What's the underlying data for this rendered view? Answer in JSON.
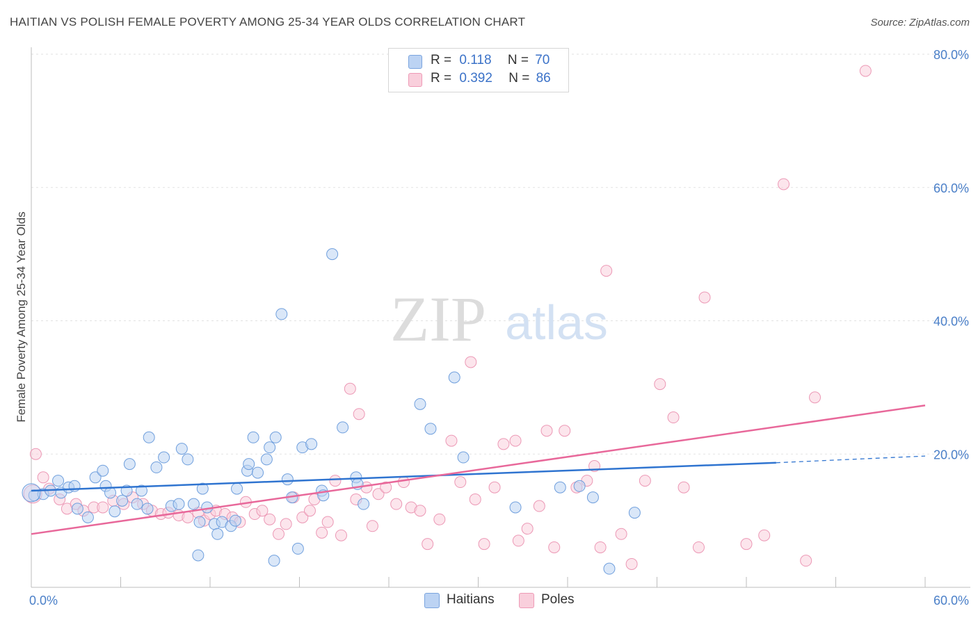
{
  "title": "HAITIAN VS POLISH FEMALE POVERTY AMONG 25-34 YEAR OLDS CORRELATION CHART",
  "source": "Source: ZipAtlas.com",
  "watermark": {
    "zip": "ZIP",
    "atlas": "atlas"
  },
  "legend": {
    "rows": [
      {
        "r_label": "R =",
        "r_value": "0.118",
        "n_label": "N =",
        "n_value": "70",
        "color": "#a8c6ef"
      },
      {
        "r_label": "R =",
        "r_value": "0.392",
        "n_label": "N =",
        "n_value": "86",
        "color": "#f7b8cc"
      }
    ]
  },
  "bottom_legend": {
    "haitians": "Haitians",
    "poles": "Poles"
  },
  "chart_data": {
    "type": "scatter",
    "title": "HAITIAN VS POLISH FEMALE POVERTY AMONG 25-34 YEAR OLDS CORRELATION CHART",
    "xlabel": "",
    "ylabel": "Female Poverty Among 25-34 Year Olds",
    "xlim": [
      0,
      60
    ],
    "ylim": [
      0,
      80
    ],
    "x_tick_labels": [
      "0.0%",
      "60.0%"
    ],
    "y_tick_labels": [
      "20.0%",
      "40.0%",
      "60.0%",
      "80.0%"
    ],
    "y_ticks": [
      20,
      40,
      60,
      80
    ],
    "grid": true,
    "legend_position": "top-center",
    "colors": {
      "haitians": "#6fa1e4",
      "poles": "#f19bb8",
      "haitians_line": "#2f74d0",
      "poles_line": "#e8689a"
    },
    "series": [
      {
        "name": "Haitians",
        "r": 0.118,
        "n": 70,
        "trend": {
          "x0": 0,
          "y0": 14.5,
          "x1": 50,
          "y1": 18.7,
          "dashed_to_x": 60,
          "dashed_to_y": 19.7
        },
        "points": [
          [
            0.2,
            13.8
          ],
          [
            0.8,
            14.0
          ],
          [
            1.3,
            14.5
          ],
          [
            1.8,
            16.0
          ],
          [
            2.0,
            14.2
          ],
          [
            2.5,
            15.0
          ],
          [
            2.9,
            15.2
          ],
          [
            3.1,
            11.8
          ],
          [
            3.8,
            10.5
          ],
          [
            4.3,
            16.5
          ],
          [
            4.8,
            17.5
          ],
          [
            5.0,
            15.2
          ],
          [
            5.3,
            14.2
          ],
          [
            5.6,
            11.4
          ],
          [
            6.1,
            13.0
          ],
          [
            6.4,
            14.5
          ],
          [
            6.6,
            18.5
          ],
          [
            7.1,
            12.5
          ],
          [
            7.4,
            14.5
          ],
          [
            7.8,
            11.8
          ],
          [
            7.9,
            22.5
          ],
          [
            8.4,
            18.0
          ],
          [
            8.9,
            19.5
          ],
          [
            9.4,
            12.2
          ],
          [
            9.9,
            12.5
          ],
          [
            10.1,
            20.8
          ],
          [
            10.5,
            19.2
          ],
          [
            10.9,
            12.5
          ],
          [
            11.2,
            4.8
          ],
          [
            11.5,
            14.8
          ],
          [
            11.8,
            12.0
          ],
          [
            11.3,
            9.8
          ],
          [
            12.3,
            9.5
          ],
          [
            12.5,
            8.0
          ],
          [
            12.8,
            9.8
          ],
          [
            13.4,
            9.2
          ],
          [
            13.7,
            10.0
          ],
          [
            13.8,
            14.8
          ],
          [
            14.5,
            17.5
          ],
          [
            14.6,
            18.5
          ],
          [
            14.9,
            22.5
          ],
          [
            15.2,
            17.2
          ],
          [
            15.8,
            19.2
          ],
          [
            16.0,
            21.0
          ],
          [
            16.4,
            22.5
          ],
          [
            16.3,
            4.0
          ],
          [
            16.8,
            41.0
          ],
          [
            17.2,
            16.2
          ],
          [
            17.5,
            13.5
          ],
          [
            17.9,
            5.8
          ],
          [
            18.2,
            21.0
          ],
          [
            18.8,
            21.5
          ],
          [
            19.5,
            14.5
          ],
          [
            19.6,
            13.8
          ],
          [
            20.2,
            50.0
          ],
          [
            20.9,
            24.0
          ],
          [
            21.8,
            16.5
          ],
          [
            21.9,
            15.5
          ],
          [
            22.3,
            12.5
          ],
          [
            26.1,
            27.5
          ],
          [
            26.8,
            23.8
          ],
          [
            28.4,
            31.5
          ],
          [
            29.0,
            19.5
          ],
          [
            32.5,
            12.0
          ],
          [
            35.5,
            15.0
          ],
          [
            36.8,
            15.2
          ],
          [
            37.7,
            13.5
          ],
          [
            38.8,
            2.8
          ],
          [
            40.5,
            11.2
          ],
          [
            0.0,
            14.2
          ]
        ]
      },
      {
        "name": "Poles",
        "r": 0.392,
        "n": 86,
        "trend": {
          "x0": 0,
          "y0": 8.0,
          "x1": 60,
          "y1": 27.3
        },
        "points": [
          [
            0.3,
            20.0
          ],
          [
            0.8,
            16.5
          ],
          [
            1.2,
            14.8
          ],
          [
            1.9,
            13.2
          ],
          [
            2.4,
            11.8
          ],
          [
            3.0,
            12.5
          ],
          [
            3.5,
            11.5
          ],
          [
            4.2,
            12.0
          ],
          [
            4.8,
            12.0
          ],
          [
            5.5,
            13.0
          ],
          [
            6.2,
            12.5
          ],
          [
            6.8,
            13.5
          ],
          [
            7.5,
            12.5
          ],
          [
            8.1,
            11.5
          ],
          [
            8.7,
            11.0
          ],
          [
            9.2,
            11.2
          ],
          [
            9.9,
            10.8
          ],
          [
            10.5,
            10.5
          ],
          [
            11.2,
            11.2
          ],
          [
            11.6,
            10.0
          ],
          [
            12.0,
            11.0
          ],
          [
            12.4,
            11.5
          ],
          [
            13.0,
            11.0
          ],
          [
            13.5,
            10.5
          ],
          [
            14.0,
            9.8
          ],
          [
            14.4,
            12.8
          ],
          [
            15.0,
            11.0
          ],
          [
            15.5,
            11.5
          ],
          [
            16.0,
            10.2
          ],
          [
            16.6,
            8.0
          ],
          [
            17.1,
            9.5
          ],
          [
            17.6,
            13.5
          ],
          [
            18.2,
            10.5
          ],
          [
            18.7,
            11.5
          ],
          [
            19.0,
            13.2
          ],
          [
            19.5,
            8.2
          ],
          [
            19.9,
            9.8
          ],
          [
            20.4,
            16.0
          ],
          [
            20.8,
            7.8
          ],
          [
            21.4,
            29.8
          ],
          [
            21.8,
            13.2
          ],
          [
            22.0,
            26.0
          ],
          [
            22.5,
            15.0
          ],
          [
            22.9,
            9.2
          ],
          [
            23.3,
            14.0
          ],
          [
            23.8,
            15.0
          ],
          [
            24.5,
            12.5
          ],
          [
            25.0,
            15.8
          ],
          [
            25.5,
            12.0
          ],
          [
            26.1,
            11.5
          ],
          [
            26.6,
            6.5
          ],
          [
            27.4,
            10.2
          ],
          [
            28.2,
            22.0
          ],
          [
            28.8,
            15.8
          ],
          [
            29.5,
            33.8
          ],
          [
            29.8,
            13.2
          ],
          [
            30.4,
            6.5
          ],
          [
            31.1,
            15.0
          ],
          [
            31.7,
            21.5
          ],
          [
            32.5,
            22.0
          ],
          [
            32.7,
            7.0
          ],
          [
            33.3,
            8.8
          ],
          [
            34.1,
            12.2
          ],
          [
            34.6,
            23.5
          ],
          [
            35.1,
            6.0
          ],
          [
            35.8,
            23.5
          ],
          [
            36.6,
            15.0
          ],
          [
            37.3,
            16.0
          ],
          [
            37.8,
            18.2
          ],
          [
            38.2,
            6.0
          ],
          [
            38.6,
            47.5
          ],
          [
            39.6,
            8.0
          ],
          [
            40.3,
            3.5
          ],
          [
            41.2,
            16.0
          ],
          [
            42.2,
            30.5
          ],
          [
            43.1,
            25.5
          ],
          [
            43.8,
            15.0
          ],
          [
            44.8,
            6.0
          ],
          [
            45.2,
            43.5
          ],
          [
            48.0,
            6.5
          ],
          [
            49.2,
            7.8
          ],
          [
            50.5,
            60.5
          ],
          [
            52.0,
            4.0
          ],
          [
            52.6,
            28.5
          ],
          [
            56.0,
            77.5
          ],
          [
            0.1,
            14.0
          ]
        ]
      }
    ]
  }
}
